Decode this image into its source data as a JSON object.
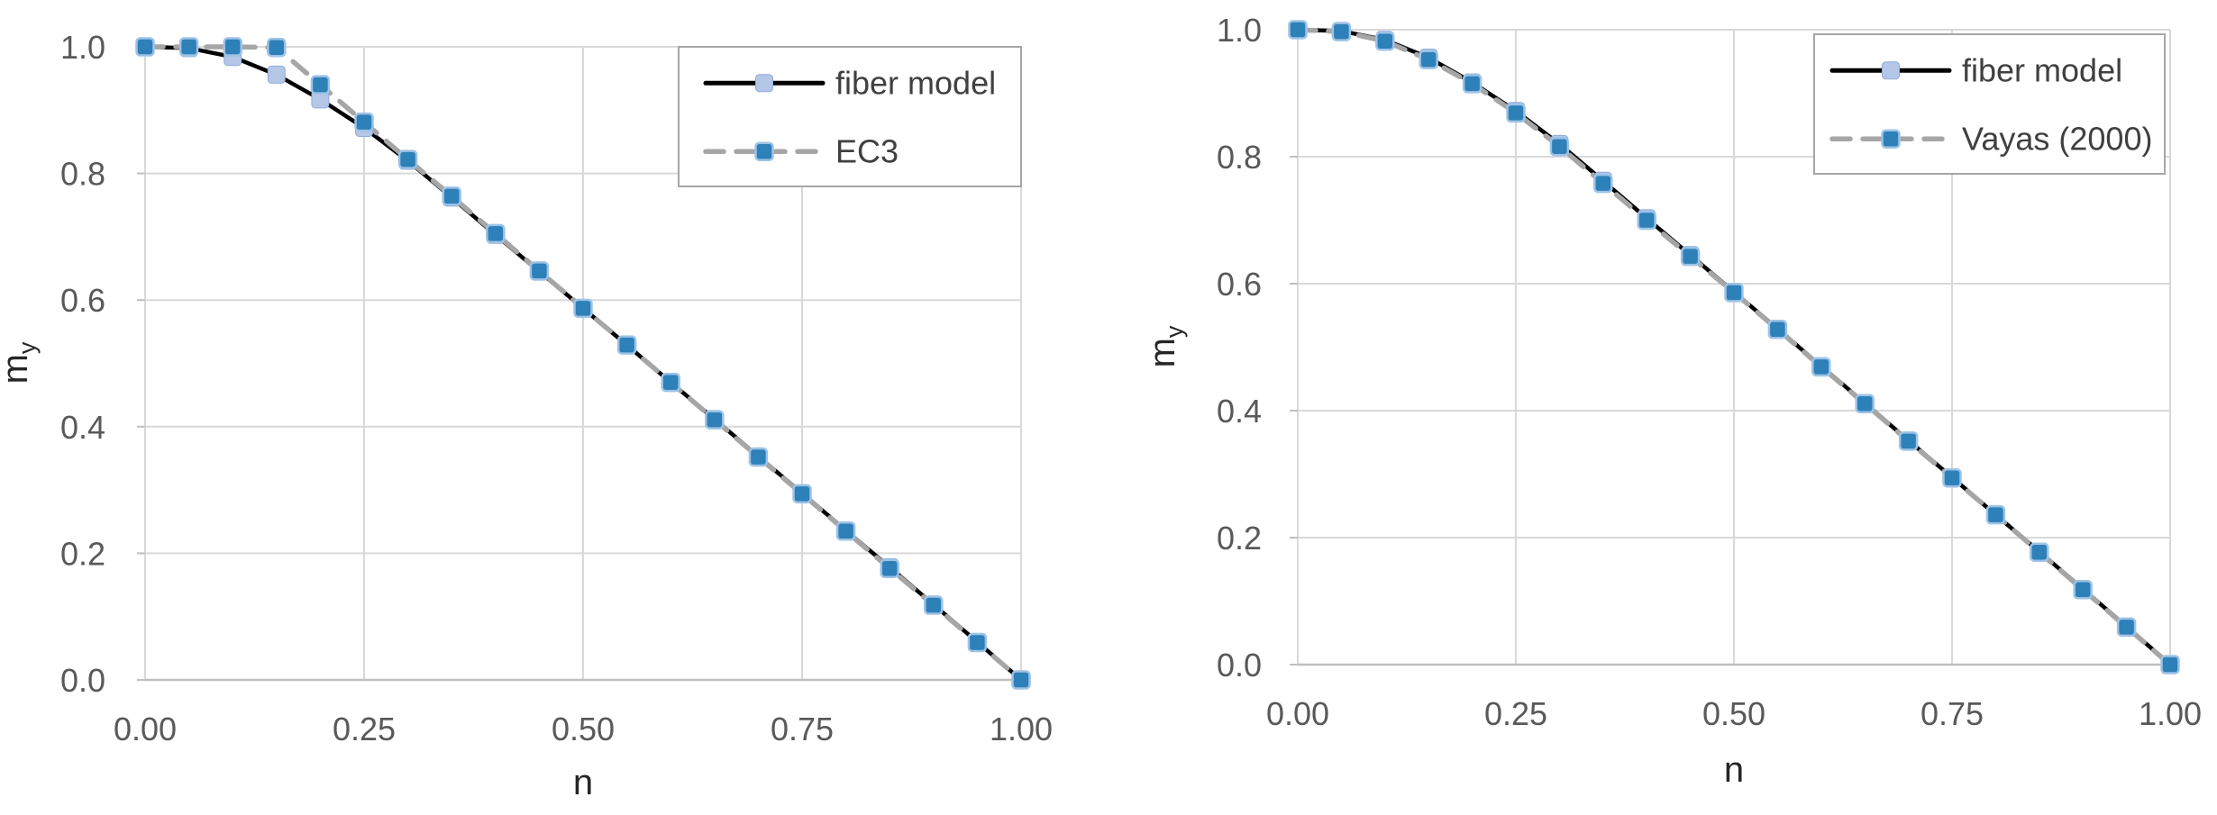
{
  "figure": {
    "background": "#ffffff",
    "description_left": "fiber model vs EC3 interaction curve",
    "description_right": "fiber model vs Vayas (2000) interaction curve"
  },
  "colors": {
    "gridline": "#d9d9d9",
    "axis_line": "#bfbfbf",
    "tick_text": "#595959",
    "axis_title_text": "#262626",
    "legend_text": "#404040",
    "legend_border": "#a6a6a6",
    "fiber_line": "#000000",
    "fiber_marker_fill": "#b4c7e7",
    "fiber_marker_stroke": "#8faadc",
    "code_line": "#a6a6a6",
    "code_marker_fill": "#2e80b9",
    "code_marker_stroke": "#9dc3e6"
  },
  "chart_data": [
    {
      "type": "line",
      "title": "",
      "xlabel": "n",
      "ylabel": {
        "base": "m",
        "sub": "y"
      },
      "xlim": [
        0,
        1
      ],
      "ylim": [
        0,
        1
      ],
      "grid": true,
      "legend_position": "top-right",
      "x_tick_values": [
        0,
        0.25,
        0.5,
        0.75,
        1
      ],
      "x_tick_labels": [
        "0.00",
        "0.25",
        "0.50",
        "0.75",
        "1.00"
      ],
      "y_tick_values": [
        0,
        0.2,
        0.4,
        0.6,
        0.8,
        1
      ],
      "y_tick_labels": [
        "0.0",
        "0.2",
        "0.4",
        "0.6",
        "0.8",
        "1.0"
      ],
      "x": [
        0,
        0.05,
        0.1,
        0.15,
        0.2,
        0.25,
        0.3,
        0.35,
        0.4,
        0.45,
        0.5,
        0.55,
        0.6,
        0.65,
        0.7,
        0.75,
        0.8,
        0.85,
        0.9,
        0.95,
        1
      ],
      "series": [
        {
          "name": "fiber model",
          "line_style": "solid",
          "line_color": "#000000",
          "marker": "square",
          "marker_fill": "#b4c7e7",
          "marker_stroke": "#8faadc",
          "marker_stroke_width": 1,
          "values": [
            1.0,
            0.998,
            0.984,
            0.956,
            0.917,
            0.872,
            0.82,
            0.762,
            0.703,
            0.645,
            0.587,
            0.529,
            0.47,
            0.412,
            0.353,
            0.295,
            0.236,
            0.178,
            0.119,
            0.06,
            0.0
          ]
        },
        {
          "name": "EC3",
          "line_style": "dashed",
          "line_color": "#a6a6a6",
          "marker": "square",
          "marker_fill": "#2e80b9",
          "marker_stroke": "#9dc3e6",
          "marker_stroke_width": 2.5,
          "values": [
            1.0,
            1.0,
            1.0,
            0.999,
            0.94,
            0.881,
            0.822,
            0.764,
            0.705,
            0.646,
            0.587,
            0.529,
            0.47,
            0.411,
            0.352,
            0.294,
            0.235,
            0.176,
            0.118,
            0.059,
            0.0
          ]
        }
      ]
    },
    {
      "type": "line",
      "title": "",
      "xlabel": "n",
      "ylabel": {
        "base": "m",
        "sub": "y"
      },
      "xlim": [
        0,
        1
      ],
      "ylim": [
        0,
        1
      ],
      "grid": true,
      "legend_position": "top-right",
      "x_tick_values": [
        0,
        0.25,
        0.5,
        0.75,
        1
      ],
      "x_tick_labels": [
        "0.00",
        "0.25",
        "0.50",
        "0.75",
        "1.00"
      ],
      "y_tick_values": [
        0,
        0.2,
        0.4,
        0.6,
        0.8,
        1
      ],
      "y_tick_labels": [
        "0.0",
        "0.2",
        "0.4",
        "0.6",
        "0.8",
        "1.0"
      ],
      "x": [
        0,
        0.05,
        0.1,
        0.15,
        0.2,
        0.25,
        0.3,
        0.35,
        0.4,
        0.45,
        0.5,
        0.55,
        0.6,
        0.65,
        0.7,
        0.75,
        0.8,
        0.85,
        0.9,
        0.95,
        1
      ],
      "series": [
        {
          "name": "fiber model",
          "line_style": "solid",
          "line_color": "#000000",
          "marker": "square",
          "marker_fill": "#b4c7e7",
          "marker_stroke": "#8faadc",
          "marker_stroke_width": 1,
          "values": [
            1.0,
            0.998,
            0.984,
            0.956,
            0.917,
            0.872,
            0.82,
            0.762,
            0.703,
            0.645,
            0.587,
            0.529,
            0.47,
            0.412,
            0.353,
            0.295,
            0.236,
            0.178,
            0.119,
            0.06,
            0.0
          ]
        },
        {
          "name": "Vayas (2000)",
          "line_style": "dashed",
          "line_color": "#a6a6a6",
          "marker": "square",
          "marker_fill": "#2e80b9",
          "marker_stroke": "#9dc3e6",
          "marker_stroke_width": 2.5,
          "values": [
            1.0,
            0.997,
            0.982,
            0.953,
            0.915,
            0.869,
            0.816,
            0.758,
            0.7,
            0.643,
            0.586,
            0.528,
            0.469,
            0.411,
            0.352,
            0.294,
            0.236,
            0.177,
            0.118,
            0.059,
            0.0
          ]
        }
      ]
    }
  ]
}
